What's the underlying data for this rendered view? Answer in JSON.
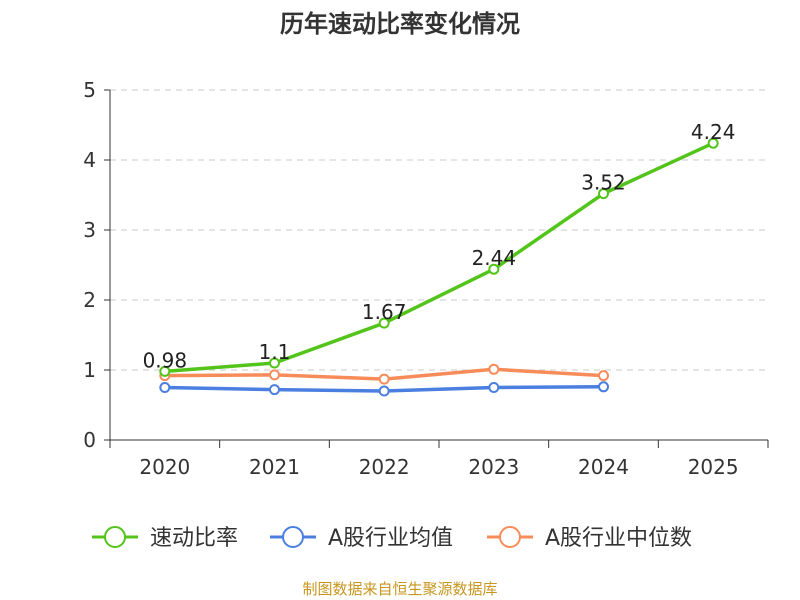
{
  "chart_data": {
    "type": "line",
    "title": "历年速动比率变化情况",
    "categories": [
      "2020",
      "2021",
      "2022",
      "2023",
      "2024",
      "2025"
    ],
    "ylim": [
      0,
      5
    ],
    "yticks": [
      "0",
      "1",
      "2",
      "3",
      "4",
      "5"
    ],
    "grid": true,
    "legend_position": "bottom",
    "series": [
      {
        "name": "速动比率",
        "color": "#52c41a",
        "values": [
          0.98,
          1.1,
          1.67,
          2.44,
          3.52,
          4.24
        ],
        "labels": [
          "0.98",
          "1.1",
          "1.67",
          "2.44",
          "3.52",
          "4.24"
        ]
      },
      {
        "name": "A股行业均值",
        "color": "#4a7fe0",
        "values": [
          0.75,
          0.72,
          0.7,
          0.75,
          0.76,
          null
        ]
      },
      {
        "name": "A股行业中位数",
        "color": "#f78c5a",
        "values": [
          0.92,
          0.93,
          0.87,
          1.01,
          0.92,
          null
        ]
      }
    ]
  },
  "footer": "制图数据来自恒生聚源数据库"
}
